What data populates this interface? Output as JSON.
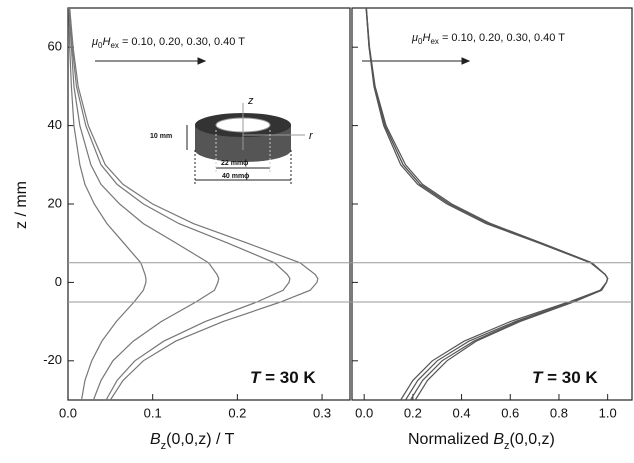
{
  "chart_data": [
    {
      "type": "line",
      "xlabel": {
        "symbol": "B",
        "sub": "z",
        "rest": "(0,0,z) / T"
      },
      "ylabel": "z / mm",
      "annotation": {
        "symbol": "μ",
        "sub1": "0",
        "symbol2": "H",
        "sub2": "ex",
        "rest": " = 0.10, 0.20, 0.30, 0.40 T"
      },
      "temperature": {
        "symbol": "T",
        "rest": " = 30 K"
      },
      "inset": {
        "height": "10 mm",
        "inner": "22 mmϕ",
        "outer": "40 mmϕ",
        "zaxis": "z",
        "raxis": "r"
      },
      "xlim": [
        0,
        0.333
      ],
      "ylim": [
        -30,
        70
      ],
      "xticks": [
        {
          "value": 0,
          "label": "0.0"
        },
        0.1,
        0.2,
        0.3
      ],
      "yticks": [
        -20,
        0,
        20,
        40,
        60
      ],
      "hlines": [
        5,
        -5
      ],
      "z": [
        -30,
        -25,
        -20,
        -15,
        -10,
        -5,
        -2,
        0,
        1,
        2,
        5,
        10,
        15,
        20,
        25,
        30,
        40,
        50,
        60,
        70
      ],
      "series": [
        {
          "color": "#777777",
          "values": [
            0.016,
            0.02,
            0.028,
            0.04,
            0.057,
            0.078,
            0.089,
            0.092,
            0.092,
            0.091,
            0.086,
            0.066,
            0.046,
            0.031,
            0.02,
            0.014,
            0.007,
            0.004,
            0.002,
            0.001
          ]
        },
        {
          "color": "#777777",
          "values": [
            0.03,
            0.039,
            0.053,
            0.077,
            0.11,
            0.151,
            0.173,
            0.177,
            0.178,
            0.176,
            0.166,
            0.128,
            0.089,
            0.061,
            0.039,
            0.027,
            0.014,
            0.007,
            0.004,
            0.001
          ]
        },
        {
          "color": "#777777",
          "values": [
            0.045,
            0.058,
            0.079,
            0.113,
            0.162,
            0.223,
            0.254,
            0.261,
            0.262,
            0.259,
            0.244,
            0.189,
            0.131,
            0.089,
            0.058,
            0.039,
            0.021,
            0.01,
            0.005,
            0.002
          ]
        },
        {
          "color": "#777777",
          "values": [
            0.05,
            0.065,
            0.089,
            0.127,
            0.183,
            0.251,
            0.286,
            0.294,
            0.295,
            0.292,
            0.274,
            0.212,
            0.148,
            0.1,
            0.065,
            0.044,
            0.024,
            0.012,
            0.006,
            0.002
          ]
        }
      ]
    },
    {
      "type": "line",
      "xlabel": {
        "prefix": "Normalized ",
        "symbol": "B",
        "sub": "z",
        "rest": "(0,0,z)"
      },
      "annotation": {
        "symbol": "μ",
        "sub1": "0",
        "symbol2": "H",
        "sub2": "ex",
        "rest": " = 0.10, 0.20, 0.30, 0.40 T"
      },
      "temperature": {
        "symbol": "T",
        "rest": " = 30 K"
      },
      "xlim": [
        -0.05,
        1.1
      ],
      "xticks": [
        {
          "value": 0,
          "label": "0.0"
        },
        0.2,
        0.4,
        0.6,
        0.8,
        {
          "value": 1,
          "label": "1.0"
        }
      ],
      "series": [
        {
          "color": "#555555",
          "values": [
            0.15,
            0.2,
            0.28,
            0.41,
            0.6,
            0.84,
            0.97,
            0.995,
            1.0,
            0.99,
            0.93,
            0.72,
            0.5,
            0.34,
            0.22,
            0.15,
            0.08,
            0.04,
            0.02,
            0.008
          ]
        },
        {
          "color": "#555555",
          "values": [
            0.17,
            0.22,
            0.3,
            0.43,
            0.62,
            0.85,
            0.97,
            0.995,
            1.0,
            0.99,
            0.93,
            0.72,
            0.51,
            0.35,
            0.23,
            0.16,
            0.085,
            0.042,
            0.02,
            0.008
          ]
        },
        {
          "color": "#555555",
          "values": [
            0.19,
            0.24,
            0.32,
            0.45,
            0.63,
            0.86,
            0.975,
            0.995,
            1.0,
            0.99,
            0.935,
            0.73,
            0.51,
            0.35,
            0.23,
            0.16,
            0.085,
            0.043,
            0.021,
            0.009
          ]
        },
        {
          "color": "#555555",
          "values": [
            0.21,
            0.26,
            0.34,
            0.46,
            0.64,
            0.86,
            0.975,
            0.995,
            1.0,
            0.99,
            0.935,
            0.73,
            0.52,
            0.36,
            0.24,
            0.17,
            0.09,
            0.045,
            0.022,
            0.009
          ]
        }
      ]
    }
  ]
}
